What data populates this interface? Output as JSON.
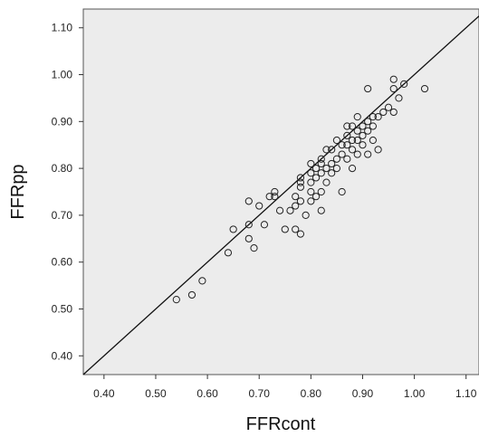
{
  "chart_data": {
    "type": "scatter",
    "title": "",
    "xlabel": "FFRcont",
    "ylabel": "FFRpp",
    "xlim": [
      0.36,
      1.125
    ],
    "ylim": [
      0.36,
      1.14
    ],
    "xticks": [
      0.4,
      0.5,
      0.6,
      0.7,
      0.8,
      0.9,
      1.0,
      1.1
    ],
    "yticks": [
      0.4,
      0.5,
      0.6,
      0.7,
      0.8,
      0.9,
      1.0,
      1.1
    ],
    "xtick_labels": [
      "0.40",
      "0.50",
      "0.60",
      "0.70",
      "0.80",
      "0.90",
      "1.00",
      "1.10"
    ],
    "ytick_labels": [
      "0.40",
      "0.50",
      "0.60",
      "0.70",
      "0.80",
      "0.90",
      "1.00",
      "1.10"
    ],
    "grid": false,
    "legend": "none",
    "colors": {
      "plot_bg": "#ececec",
      "marker": "#222222",
      "line": "#111111"
    },
    "reference_line": {
      "type": "identity",
      "x": [
        0.36,
        1.125
      ],
      "y": [
        0.36,
        1.125
      ]
    },
    "points": [
      {
        "x": 0.54,
        "y": 0.52
      },
      {
        "x": 0.57,
        "y": 0.53
      },
      {
        "x": 0.59,
        "y": 0.56
      },
      {
        "x": 0.64,
        "y": 0.62
      },
      {
        "x": 0.65,
        "y": 0.67
      },
      {
        "x": 0.68,
        "y": 0.65
      },
      {
        "x": 0.68,
        "y": 0.68
      },
      {
        "x": 0.68,
        "y": 0.73
      },
      {
        "x": 0.69,
        "y": 0.63
      },
      {
        "x": 0.7,
        "y": 0.72
      },
      {
        "x": 0.71,
        "y": 0.68
      },
      {
        "x": 0.72,
        "y": 0.74
      },
      {
        "x": 0.73,
        "y": 0.74
      },
      {
        "x": 0.73,
        "y": 0.75
      },
      {
        "x": 0.74,
        "y": 0.71
      },
      {
        "x": 0.75,
        "y": 0.67
      },
      {
        "x": 0.76,
        "y": 0.71
      },
      {
        "x": 0.77,
        "y": 0.67
      },
      {
        "x": 0.77,
        "y": 0.72
      },
      {
        "x": 0.77,
        "y": 0.74
      },
      {
        "x": 0.78,
        "y": 0.66
      },
      {
        "x": 0.78,
        "y": 0.73
      },
      {
        "x": 0.78,
        "y": 0.76
      },
      {
        "x": 0.78,
        "y": 0.77
      },
      {
        "x": 0.78,
        "y": 0.78
      },
      {
        "x": 0.79,
        "y": 0.7
      },
      {
        "x": 0.8,
        "y": 0.73
      },
      {
        "x": 0.8,
        "y": 0.75
      },
      {
        "x": 0.8,
        "y": 0.77
      },
      {
        "x": 0.8,
        "y": 0.79
      },
      {
        "x": 0.8,
        "y": 0.81
      },
      {
        "x": 0.81,
        "y": 0.74
      },
      {
        "x": 0.81,
        "y": 0.78
      },
      {
        "x": 0.81,
        "y": 0.8
      },
      {
        "x": 0.82,
        "y": 0.71
      },
      {
        "x": 0.82,
        "y": 0.75
      },
      {
        "x": 0.82,
        "y": 0.79
      },
      {
        "x": 0.82,
        "y": 0.81
      },
      {
        "x": 0.82,
        "y": 0.82
      },
      {
        "x": 0.83,
        "y": 0.77
      },
      {
        "x": 0.83,
        "y": 0.8
      },
      {
        "x": 0.83,
        "y": 0.84
      },
      {
        "x": 0.84,
        "y": 0.79
      },
      {
        "x": 0.84,
        "y": 0.81
      },
      {
        "x": 0.84,
        "y": 0.84
      },
      {
        "x": 0.85,
        "y": 0.8
      },
      {
        "x": 0.85,
        "y": 0.82
      },
      {
        "x": 0.85,
        "y": 0.86
      },
      {
        "x": 0.86,
        "y": 0.75
      },
      {
        "x": 0.86,
        "y": 0.83
      },
      {
        "x": 0.86,
        "y": 0.85
      },
      {
        "x": 0.87,
        "y": 0.82
      },
      {
        "x": 0.87,
        "y": 0.85
      },
      {
        "x": 0.87,
        "y": 0.87
      },
      {
        "x": 0.87,
        "y": 0.89
      },
      {
        "x": 0.88,
        "y": 0.8
      },
      {
        "x": 0.88,
        "y": 0.84
      },
      {
        "x": 0.88,
        "y": 0.86
      },
      {
        "x": 0.88,
        "y": 0.89
      },
      {
        "x": 0.89,
        "y": 0.83
      },
      {
        "x": 0.89,
        "y": 0.86
      },
      {
        "x": 0.89,
        "y": 0.88
      },
      {
        "x": 0.89,
        "y": 0.91
      },
      {
        "x": 0.9,
        "y": 0.85
      },
      {
        "x": 0.9,
        "y": 0.87
      },
      {
        "x": 0.9,
        "y": 0.89
      },
      {
        "x": 0.91,
        "y": 0.83
      },
      {
        "x": 0.91,
        "y": 0.88
      },
      {
        "x": 0.91,
        "y": 0.9
      },
      {
        "x": 0.91,
        "y": 0.97
      },
      {
        "x": 0.92,
        "y": 0.86
      },
      {
        "x": 0.92,
        "y": 0.89
      },
      {
        "x": 0.92,
        "y": 0.91
      },
      {
        "x": 0.93,
        "y": 0.84
      },
      {
        "x": 0.93,
        "y": 0.91
      },
      {
        "x": 0.94,
        "y": 0.92
      },
      {
        "x": 0.95,
        "y": 0.93
      },
      {
        "x": 0.96,
        "y": 0.92
      },
      {
        "x": 0.96,
        "y": 0.97
      },
      {
        "x": 0.96,
        "y": 0.99
      },
      {
        "x": 0.97,
        "y": 0.95
      },
      {
        "x": 0.98,
        "y": 0.98
      },
      {
        "x": 1.02,
        "y": 0.97
      }
    ]
  }
}
